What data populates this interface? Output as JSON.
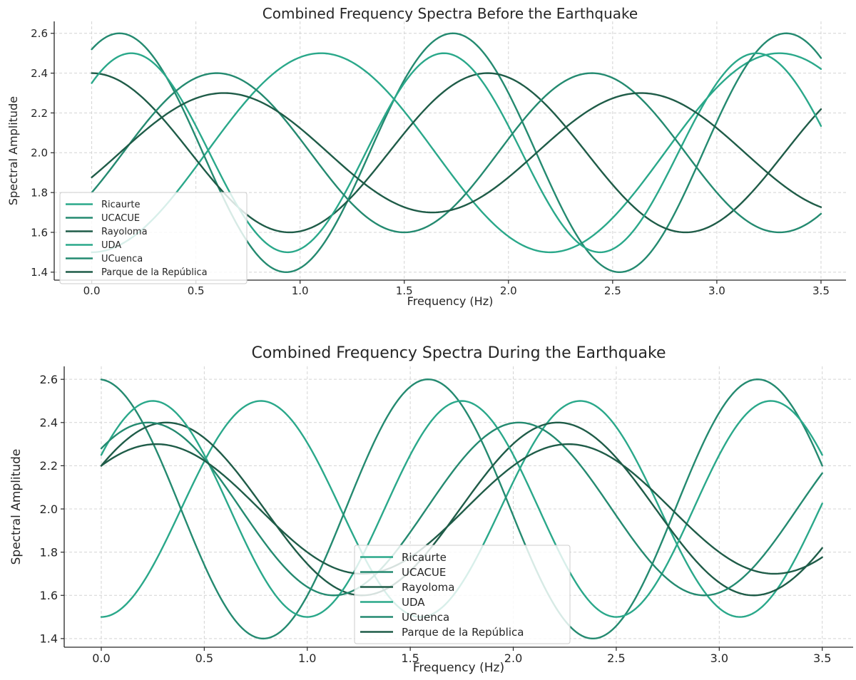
{
  "chart_data": [
    {
      "type": "line",
      "title": "Combined Frequency Spectra Before the Earthquake",
      "xlabel": "Frequency (Hz)",
      "ylabel": "Spectral Amplitude",
      "xlim": [
        -0.18,
        3.62
      ],
      "ylim": [
        1.36,
        2.66
      ],
      "xticks": [
        "0.0",
        "0.5",
        "1.0",
        "1.5",
        "2.0",
        "2.5",
        "3.0",
        "3.5"
      ],
      "yticks": [
        "1.4",
        "1.6",
        "1.8",
        "2.0",
        "2.2",
        "2.4",
        "2.6"
      ],
      "grid": true,
      "legend_position": "lower-left",
      "series": [
        {
          "name": "Ricaurte",
          "color": "#2aa88a",
          "mean": 2.0,
          "amplitude": 0.5,
          "period_hz": 2.2,
          "phase": -1.5708
        },
        {
          "name": "UCACUE",
          "color": "#248a70",
          "mean": 2.0,
          "amplitude": 0.6,
          "period_hz": 1.6,
          "phase": 1.0472
        },
        {
          "name": "Rayoloma",
          "color": "#1f5c48",
          "mean": 2.0,
          "amplitude": 0.4,
          "period_hz": 1.9,
          "phase": 1.5708
        },
        {
          "name": "UDA",
          "color": "#2aa88a",
          "mean": 2.0,
          "amplitude": 0.5,
          "period_hz": 1.5,
          "phase": 0.7754
        },
        {
          "name": "UCuenca",
          "color": "#248a70",
          "mean": 2.0,
          "amplitude": 0.4,
          "period_hz": 1.8,
          "phase": -0.5236
        },
        {
          "name": "Parque de la República",
          "color": "#1f5c48",
          "mean": 2.0,
          "amplitude": 0.3,
          "period_hz": 2.0,
          "phase": -0.4242
        }
      ]
    },
    {
      "type": "line",
      "title": "Combined Frequency Spectra During the Earthquake",
      "xlabel": "Frequency (Hz)",
      "ylabel": "Spectral Amplitude",
      "xlim": [
        -0.18,
        3.65
      ],
      "ylim": [
        1.36,
        2.66
      ],
      "xticks": [
        "0.0",
        "0.5",
        "1.0",
        "1.5",
        "2.0",
        "2.5",
        "3.0",
        "3.5"
      ],
      "yticks": [
        "1.4",
        "1.6",
        "1.8",
        "2.0",
        "2.2",
        "2.4",
        "2.6"
      ],
      "grid": true,
      "legend_position": "lower-center",
      "series": [
        {
          "name": "Ricaurte",
          "color": "#2aa88a",
          "mean": 2.0,
          "amplitude": 0.5,
          "period_hz": 1.55,
          "phase": -1.5708
        },
        {
          "name": "UCACUE",
          "color": "#248a70",
          "mean": 2.0,
          "amplitude": 0.6,
          "period_hz": 1.6,
          "phase": 1.6236
        },
        {
          "name": "Rayoloma",
          "color": "#1f5c48",
          "mean": 2.0,
          "amplitude": 0.4,
          "period_hz": 1.9,
          "phase": 0.5236
        },
        {
          "name": "UDA",
          "color": "#2aa88a",
          "mean": 2.0,
          "amplitude": 0.5,
          "period_hz": 1.5,
          "phase": 0.5236
        },
        {
          "name": "UCuenca",
          "color": "#248a70",
          "mean": 2.0,
          "amplitude": 0.4,
          "period_hz": 1.8,
          "phase": 0.7754
        },
        {
          "name": "Parque de la República",
          "color": "#1f5c48",
          "mean": 2.0,
          "amplitude": 0.3,
          "period_hz": 2.0,
          "phase": 0.7297
        }
      ]
    }
  ]
}
